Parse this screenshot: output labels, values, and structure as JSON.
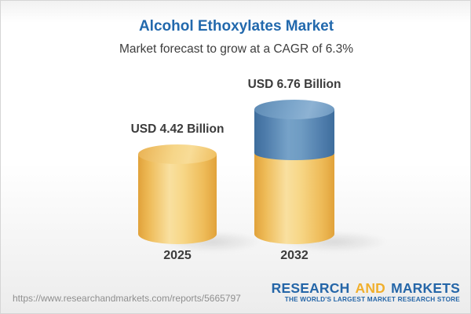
{
  "header": {
    "title": "Alcohol Ethoxylates Market",
    "subtitle": "Market forecast to grow at a CAGR of 6.3%"
  },
  "chart_data": {
    "type": "bar",
    "style": "3d-cylinder",
    "title": "Alcohol Ethoxylates Market",
    "subtitle": "Market forecast to grow at a CAGR of 6.3%",
    "categories": [
      "2025",
      "2032"
    ],
    "values": [
      4.42,
      6.76
    ],
    "unit": "USD Billion",
    "value_labels": [
      "USD 4.42 Billion",
      "USD 6.76 Billion"
    ],
    "cagr_percent": 6.3,
    "legend": "none",
    "grid": false,
    "colors": {
      "base_segment": "#F3CB72",
      "growth_segment": "#5E8CB6",
      "title_text": "#2269AD",
      "label_text": "#3B3B3B"
    }
  },
  "footer": {
    "url": "https://www.researchandmarkets.com/reports/5665797",
    "logo": {
      "word_research": "RESEARCH",
      "word_and": "AND",
      "word_markets": "MARKETS",
      "tagline": "THE WORLD'S LARGEST MARKET RESEARCH STORE"
    }
  }
}
